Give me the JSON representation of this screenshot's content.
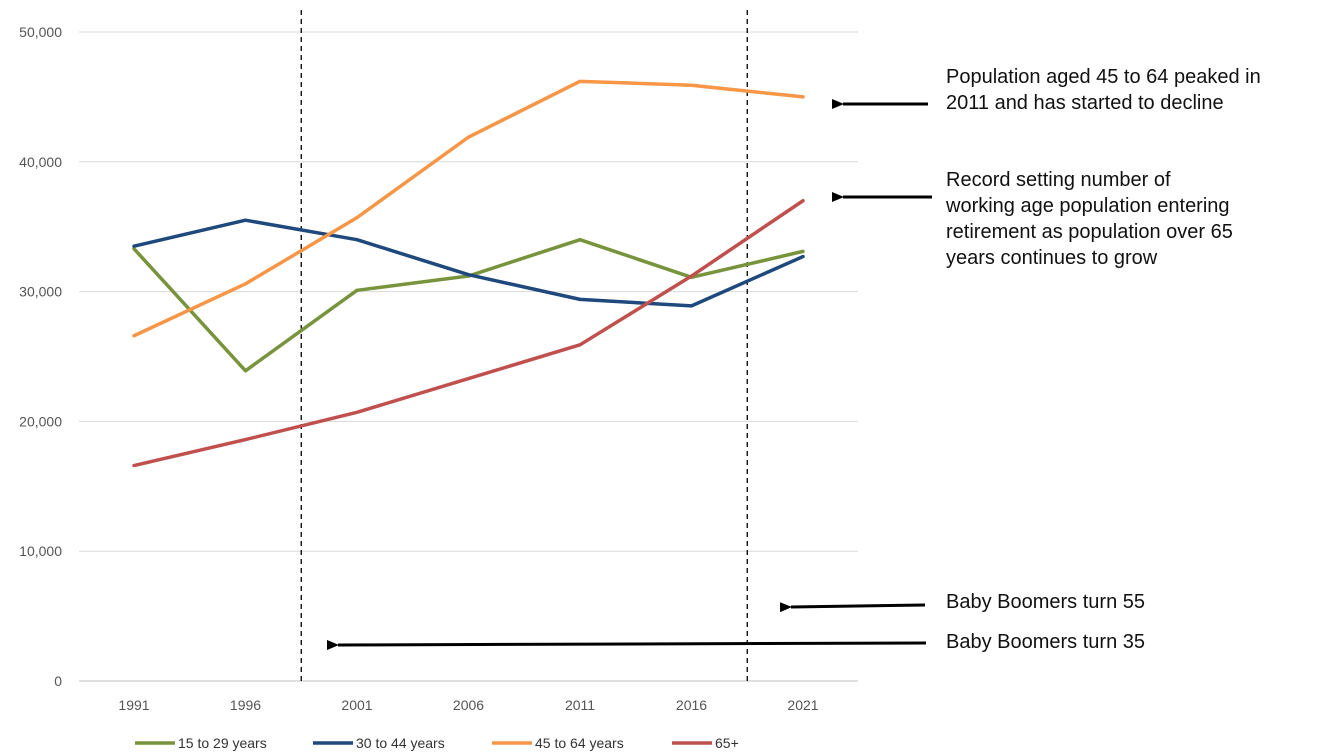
{
  "chart_data": {
    "type": "line",
    "categories": [
      "1991",
      "1996",
      "2001",
      "2006",
      "2011",
      "2016",
      "2021"
    ],
    "series": [
      {
        "name": "15 to 29 years",
        "color": "#77933C",
        "values": [
          33300,
          23900,
          30100,
          31200,
          34000,
          31100,
          33100
        ]
      },
      {
        "name": "30 to 44 years",
        "color": "#1F497D",
        "values": [
          33500,
          35500,
          34000,
          31300,
          29400,
          28900,
          32700
        ]
      },
      {
        "name": "45 to 64 years",
        "color": "#F79646",
        "values": [
          26600,
          30600,
          35700,
          41900,
          46200,
          45900,
          45000
        ]
      },
      {
        "name": "65+",
        "color": "#C0504D",
        "values": [
          16600,
          18600,
          20700,
          23300,
          25900,
          31200,
          37000
        ]
      }
    ],
    "ylim": [
      0,
      50000
    ],
    "yticks": [
      "0",
      "10,000",
      "20,000",
      "30,000",
      "40,000",
      "50,000"
    ],
    "ytick_values": [
      0,
      10000,
      20000,
      30000,
      40000,
      50000
    ],
    "grid": true,
    "legend_position": "bottom",
    "reference_lines": [
      {
        "between": [
          "1996",
          "2001"
        ],
        "style": "dashed"
      },
      {
        "between": [
          "2016",
          "2021"
        ],
        "style": "dashed"
      }
    ]
  },
  "annotations": {
    "peak_45_64": {
      "line1": "Population aged 45 to 64 peaked in",
      "line2": "2011 and has started to decline"
    },
    "retirement": {
      "line1": "Record setting number of",
      "line2": "working age population entering",
      "line3": "retirement as population over 65",
      "line4": "years continues to grow"
    },
    "boomers_55": "Baby Boomers turn 55",
    "boomers_35": "Baby Boomers turn 35"
  }
}
